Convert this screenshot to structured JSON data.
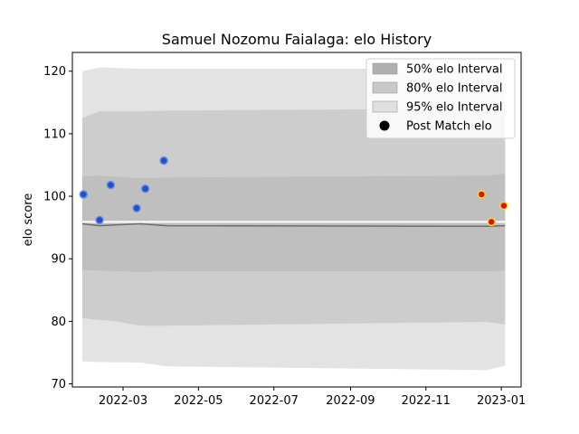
{
  "chart_data": {
    "type": "scatter",
    "title": "Samuel Nozomu Faialaga: elo History",
    "xlabel": "",
    "ylabel": "elo score",
    "xlim": [
      "2022-01-19",
      "2023-01-17"
    ],
    "ylim": [
      69.5,
      123
    ],
    "x_ticks": [
      "2022-03-01",
      "2022-05-01",
      "2022-07-01",
      "2022-09-01",
      "2022-11-01",
      "2023-01-01"
    ],
    "x_tick_labels": [
      "2022-03",
      "2022-05",
      "2022-07",
      "2022-09",
      "2022-11",
      "2023-01"
    ],
    "y_ticks": [
      70,
      80,
      90,
      100,
      110,
      120
    ],
    "y_tick_labels": [
      "70",
      "80",
      "90",
      "100",
      "110",
      "120"
    ],
    "legend_position": "top-right",
    "legend": [
      {
        "label": "50% elo Interval",
        "color": "#b0b0b0"
      },
      {
        "label": "80% elo Interval",
        "color": "#c8c8c8"
      },
      {
        "label": "95% elo Interval",
        "color": "#e0e0e0"
      },
      {
        "label": "Post Match elo",
        "color": "#000000"
      }
    ],
    "bands": [
      {
        "name": "95% elo Interval",
        "color": "#e3e3e3",
        "points": [
          {
            "x": "2022-01-27",
            "lo": 73.6,
            "hi": 120.0
          },
          {
            "x": "2022-02-10",
            "lo": 73.5,
            "hi": 120.6
          },
          {
            "x": "2022-03-15",
            "lo": 73.4,
            "hi": 120.4
          },
          {
            "x": "2022-04-05",
            "lo": 72.8,
            "hi": 120.4
          },
          {
            "x": "2022-12-20",
            "lo": 72.2,
            "hi": 120.4
          },
          {
            "x": "2023-01-04",
            "lo": 72.9,
            "hi": 120.5
          }
        ]
      },
      {
        "name": "80% elo Interval",
        "color": "#cdcdcd",
        "points": [
          {
            "x": "2022-01-27",
            "lo": 80.5,
            "hi": 112.5
          },
          {
            "x": "2022-02-10",
            "lo": 80.2,
            "hi": 113.6
          },
          {
            "x": "2022-02-20",
            "lo": 80.1,
            "hi": 113.6
          },
          {
            "x": "2022-03-15",
            "lo": 79.3,
            "hi": 113.6
          },
          {
            "x": "2022-04-05",
            "lo": 79.3,
            "hi": 113.7
          },
          {
            "x": "2022-12-20",
            "lo": 79.9,
            "hi": 114.0
          },
          {
            "x": "2023-01-04",
            "lo": 79.5,
            "hi": 114.0
          }
        ]
      },
      {
        "name": "50% elo Interval",
        "color": "#bfbfbf",
        "points": [
          {
            "x": "2022-01-27",
            "lo": 88.2,
            "hi": 103.2
          },
          {
            "x": "2022-02-10",
            "lo": 88.1,
            "hi": 103.3
          },
          {
            "x": "2022-03-15",
            "lo": 87.9,
            "hi": 102.9
          },
          {
            "x": "2022-04-05",
            "lo": 88.0,
            "hi": 103.0
          },
          {
            "x": "2022-12-20",
            "lo": 88.0,
            "hi": 103.3
          },
          {
            "x": "2023-01-04",
            "lo": 88.1,
            "hi": 103.6
          }
        ]
      }
    ],
    "mean_line": [
      {
        "x": "2022-01-27",
        "y": 95.6
      },
      {
        "x": "2022-02-10",
        "y": 95.3
      },
      {
        "x": "2022-03-15",
        "y": 95.6
      },
      {
        "x": "2022-04-05",
        "y": 95.3
      },
      {
        "x": "2022-12-20",
        "y": 95.2
      },
      {
        "x": "2023-01-04",
        "y": 95.3
      }
    ],
    "baseline": 95.9,
    "series": [
      {
        "marker_color": "#2250c8",
        "edge_color": "#6a8ee0",
        "points": [
          {
            "x": "2022-01-28",
            "y": 100.3
          },
          {
            "x": "2022-02-10",
            "y": 96.2
          },
          {
            "x": "2022-02-19",
            "y": 101.8
          },
          {
            "x": "2022-03-12",
            "y": 98.1
          },
          {
            "x": "2022-03-19",
            "y": 101.2
          },
          {
            "x": "2022-04-03",
            "y": 105.7
          }
        ]
      },
      {
        "marker_color": "#e01010",
        "edge_color": "#f0e020",
        "points": [
          {
            "x": "2022-12-16",
            "y": 100.3
          },
          {
            "x": "2022-12-24",
            "y": 95.9
          },
          {
            "x": "2023-01-03",
            "y": 98.5
          }
        ]
      }
    ]
  }
}
